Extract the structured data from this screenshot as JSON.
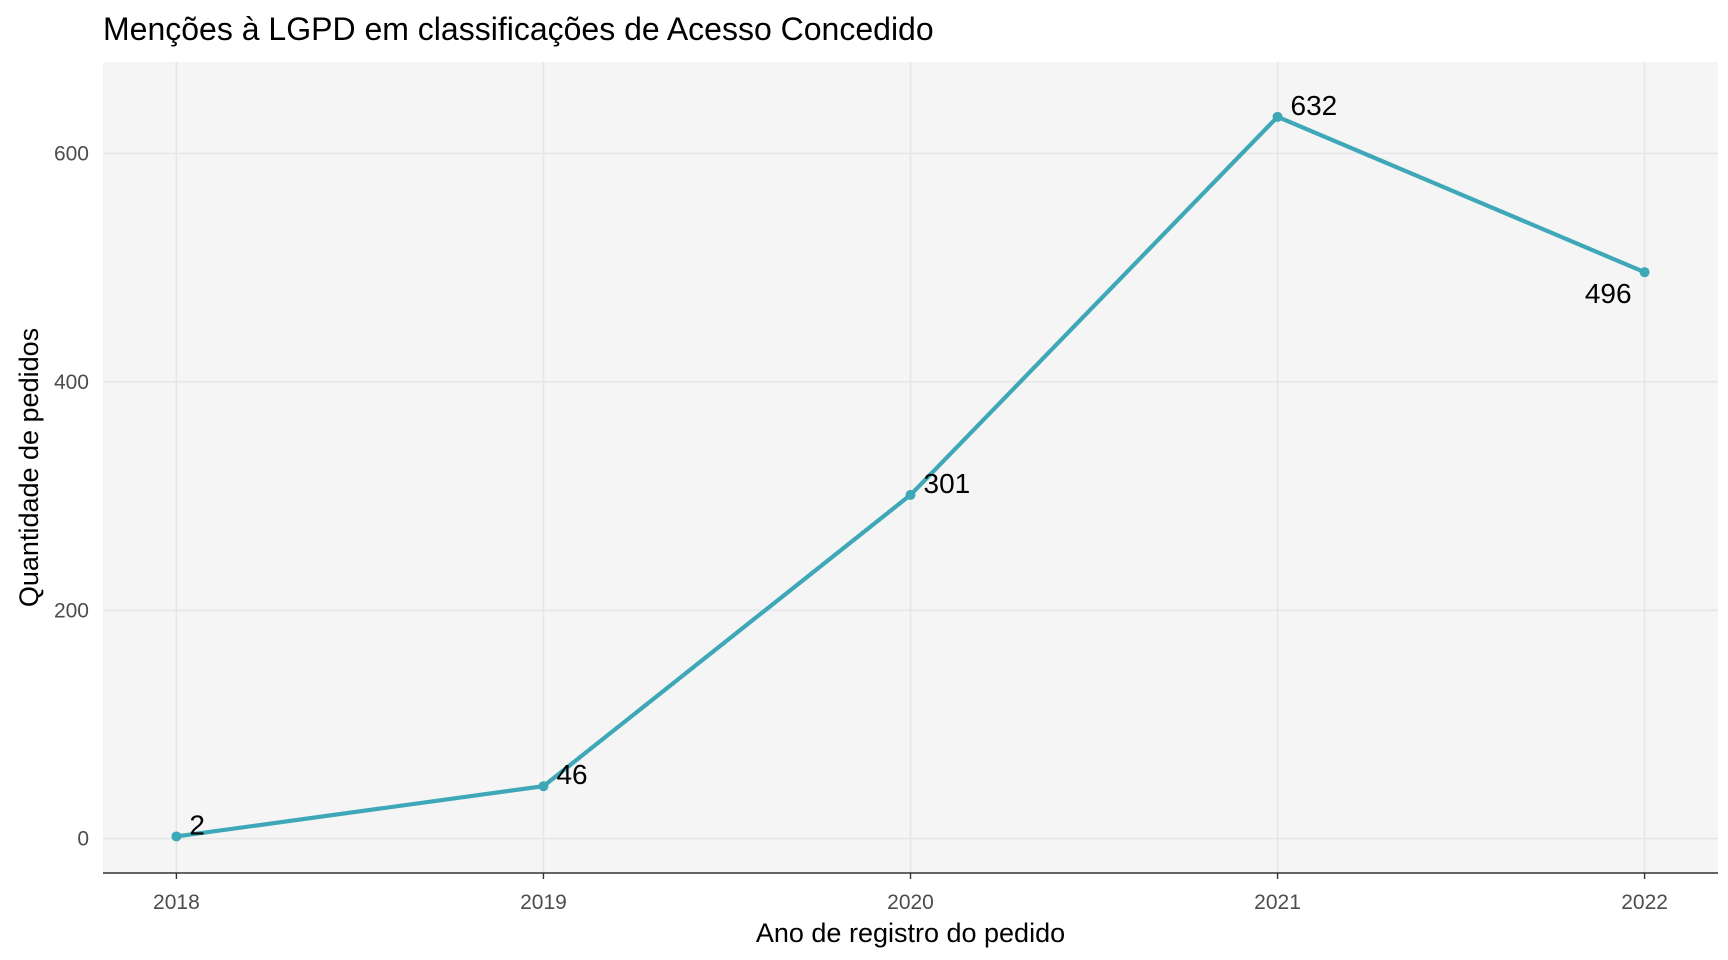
{
  "chart_data": {
    "type": "line",
    "title": "Menções à LGPD em classificações de Acesso Concedido",
    "xlabel": "Ano de registro do pedido",
    "ylabel": "Quantidade de pedidos",
    "x": [
      2018,
      2019,
      2020,
      2021,
      2022
    ],
    "x_tick_labels": [
      "2018",
      "2019",
      "2020",
      "2021",
      "2022"
    ],
    "series": [
      {
        "values": [
          2,
          46,
          301,
          632,
          496
        ],
        "data_labels": [
          "2",
          "46",
          "301",
          "632",
          "496"
        ],
        "color": "#3ea8b8"
      }
    ],
    "y_ticks": [
      0,
      200,
      400,
      600
    ],
    "y_tick_labels": [
      "0",
      "200",
      "400",
      "600"
    ],
    "xlim": [
      2017.8,
      2022.2
    ],
    "ylim": [
      -30,
      680
    ],
    "grid": true,
    "panel_background": "#f5f5f5",
    "grid_color": "#e6e6e6",
    "axis_line_color": "#333333"
  }
}
